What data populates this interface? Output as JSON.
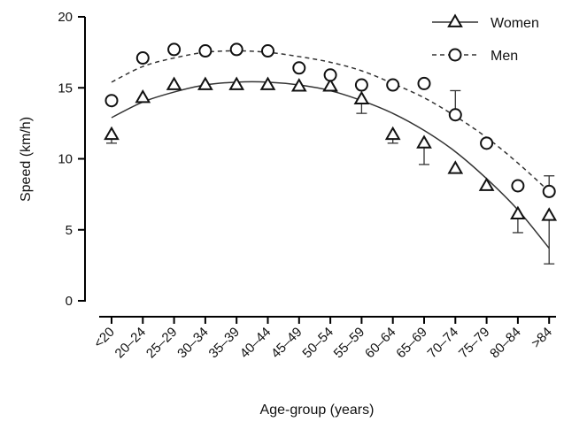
{
  "chart_data": {
    "type": "scatter",
    "xlabel": "Age-group (years)",
    "ylabel": "Speed (km/h)",
    "ylim": [
      0,
      20
    ],
    "yticks": [
      "0",
      "5",
      "10",
      "15",
      "20"
    ],
    "grid": false,
    "legend": "top-right",
    "categories": [
      "<20",
      "20–24",
      "25–29",
      "30–34",
      "35–39",
      "40–44",
      "45–49",
      "50–54",
      "55–59",
      "60–64",
      "65–69",
      "70–74",
      "75–79",
      "80–84",
      ">84"
    ],
    "series": [
      {
        "name": "Women",
        "marker": "triangle",
        "line_style": "solid",
        "values": [
          11.7,
          14.3,
          15.2,
          15.2,
          15.2,
          15.2,
          15.1,
          15.1,
          14.2,
          11.7,
          11.1,
          9.3,
          8.1,
          6.1,
          6.0
        ],
        "error": [
          0.6,
          null,
          null,
          null,
          null,
          null,
          null,
          null,
          1.0,
          0.6,
          1.5,
          null,
          null,
          1.3,
          3.4
        ],
        "fit": [
          12.9,
          14.0,
          14.7,
          15.2,
          15.4,
          15.4,
          15.2,
          14.8,
          14.1,
          13.2,
          12.0,
          10.5,
          8.6,
          6.4,
          3.7
        ]
      },
      {
        "name": "Men",
        "marker": "circle",
        "line_style": "dashed",
        "values": [
          14.1,
          17.1,
          17.7,
          17.6,
          17.7,
          17.6,
          16.4,
          15.9,
          15.2,
          15.2,
          15.3,
          13.1,
          11.1,
          8.1,
          7.7
        ],
        "error": [
          null,
          null,
          null,
          null,
          null,
          null,
          null,
          null,
          null,
          null,
          null,
          1.7,
          null,
          null,
          1.1
        ],
        "fit": [
          15.4,
          16.5,
          17.1,
          17.5,
          17.6,
          17.5,
          17.2,
          16.8,
          16.2,
          15.3,
          14.3,
          13.0,
          11.5,
          9.7,
          7.7
        ]
      }
    ]
  }
}
